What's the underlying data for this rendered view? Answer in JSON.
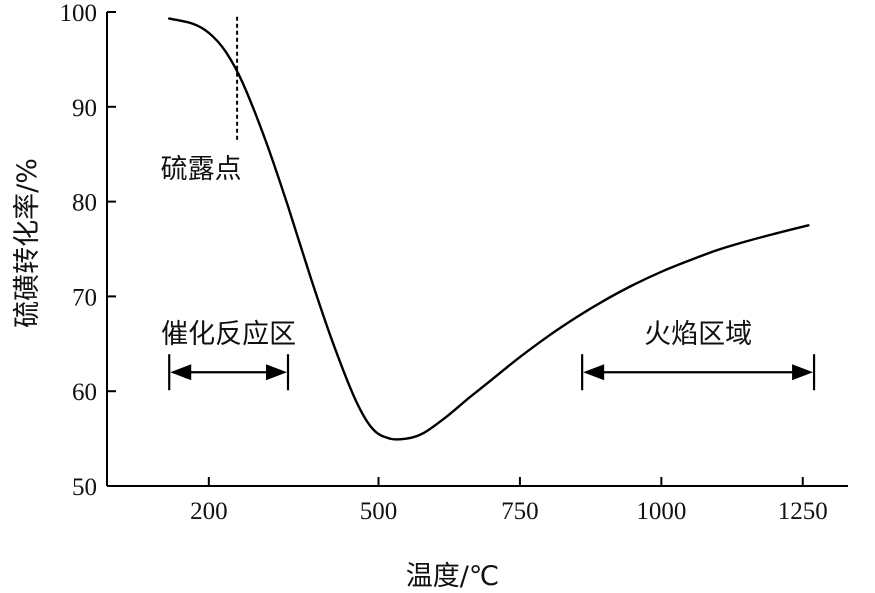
{
  "chart_data": {
    "type": "line",
    "xlabel": "温度/℃",
    "ylabel": "硫磺转化率/%",
    "xlim": [
      20,
      1330
    ],
    "ylim": [
      50,
      100
    ],
    "x_ticks": [
      200,
      500,
      750,
      1000,
      1250
    ],
    "y_ticks": [
      50,
      60,
      70,
      80,
      90,
      100
    ],
    "grid": false,
    "series": [
      {
        "x": [
          130,
          170,
          200,
          230,
          260,
          300,
          340,
          380,
          420,
          460,
          490,
          520,
          550,
          580,
          620,
          660,
          700,
          750,
          800,
          850,
          900,
          950,
          1000,
          1050,
          1100,
          1150,
          1200,
          1260
        ],
        "values": [
          99.3,
          98.8,
          97.8,
          95.8,
          92.5,
          86.5,
          79.5,
          72,
          65,
          59,
          56,
          55,
          55,
          55.6,
          57.3,
          59.3,
          61.2,
          63.6,
          65.8,
          67.8,
          69.6,
          71.2,
          72.6,
          73.8,
          74.9,
          75.8,
          76.6,
          77.5
        ]
      }
    ],
    "annotations": {
      "dew_point": {
        "label": "硫露点",
        "x": 250
      },
      "catalytic_zone": {
        "label": "催化反应区",
        "x_range": [
          130,
          340
        ]
      },
      "flame_zone": {
        "label": "火焰区域",
        "x_range": [
          860,
          1270
        ]
      }
    }
  }
}
